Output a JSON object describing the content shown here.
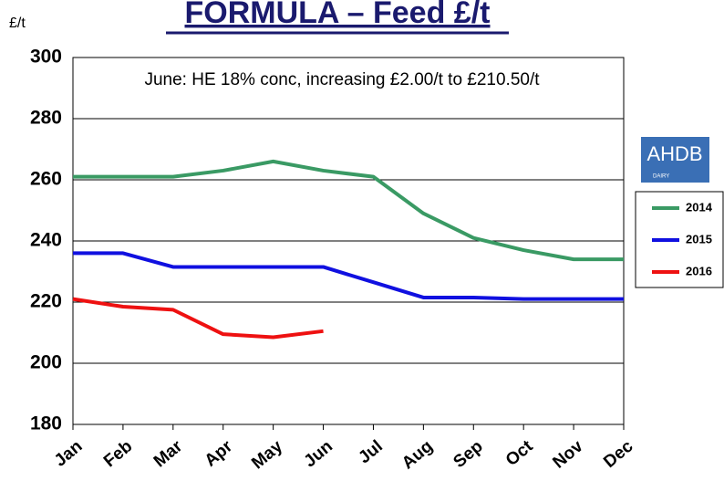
{
  "chart_data": {
    "type": "line",
    "title": "FORMULA – Feed £/t",
    "y_label": "£/t",
    "annotation": "June: HE 18% conc, increasing £2.00/t to £210.50/t",
    "logo": {
      "text": "AHDB",
      "subtext": "DAIRY"
    },
    "categories": [
      "Jan",
      "Feb",
      "Mar",
      "Apr",
      "May",
      "Jun",
      "Jul",
      "Aug",
      "Sep",
      "Oct",
      "Nov",
      "Dec"
    ],
    "series": [
      {
        "name": "2014",
        "color": "#3a9a64",
        "values": [
          261,
          261,
          261,
          263,
          266,
          263,
          261,
          249,
          241,
          237,
          234,
          234
        ]
      },
      {
        "name": "2015",
        "color": "#1010e0",
        "values": [
          236,
          236,
          231.5,
          231.5,
          231.5,
          231.5,
          226.5,
          221.5,
          221.5,
          221,
          221,
          221
        ]
      },
      {
        "name": "2016",
        "color": "#ee1111",
        "values": [
          221,
          218.5,
          217.5,
          209.5,
          208.5,
          210.5,
          null,
          null,
          null,
          null,
          null,
          null
        ]
      }
    ],
    "ylim": [
      180,
      300
    ],
    "yticks": [
      180,
      200,
      220,
      240,
      260,
      280,
      300
    ],
    "grid": true,
    "legend": "right"
  }
}
